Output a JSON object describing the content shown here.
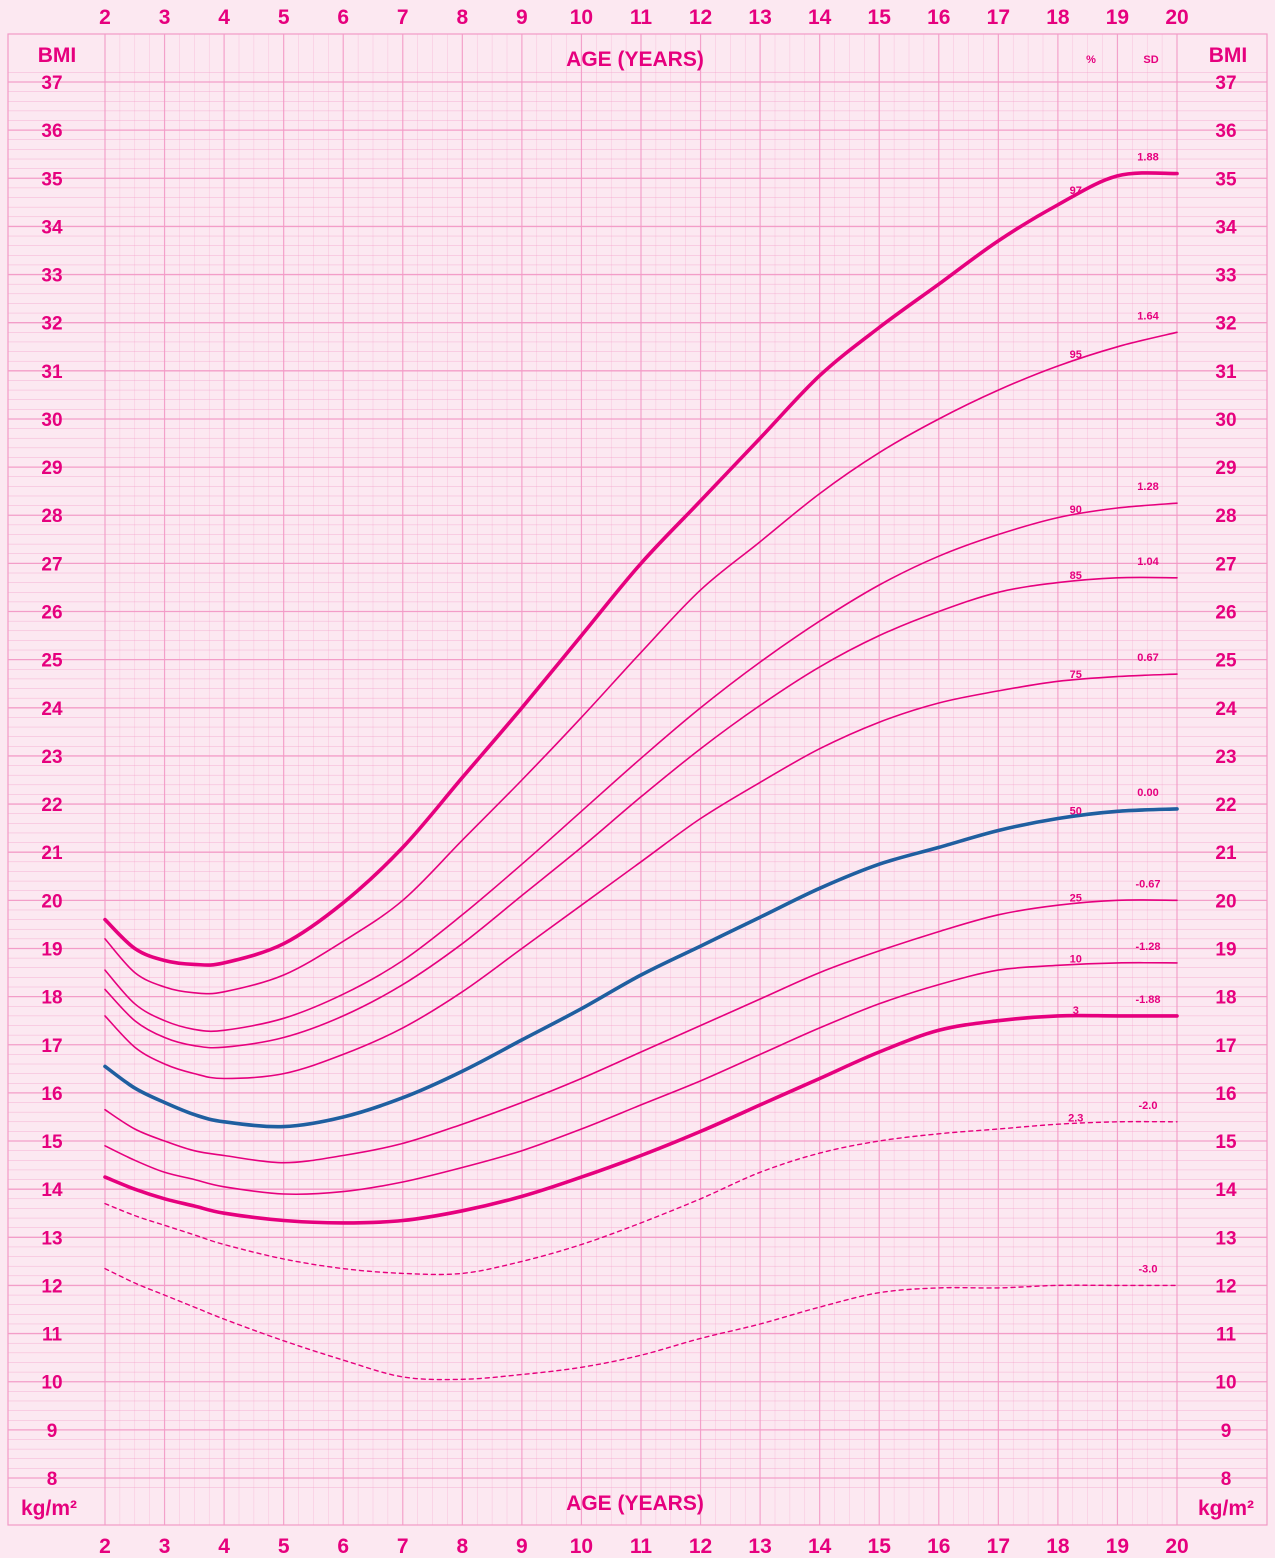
{
  "chart_data": {
    "type": "line",
    "title": "",
    "xlabel": "AGE (YEARS)",
    "ylabel": "BMI",
    "y_unit": "kg/m²",
    "xlim": [
      2,
      20
    ],
    "ylim": [
      8,
      37
    ],
    "x_ticks": [
      2,
      3,
      4,
      5,
      6,
      7,
      8,
      9,
      10,
      11,
      12,
      13,
      14,
      15,
      16,
      17,
      18,
      19,
      20
    ],
    "y_ticks": [
      8,
      9,
      10,
      11,
      12,
      13,
      14,
      15,
      16,
      17,
      18,
      19,
      20,
      21,
      22,
      23,
      24,
      25,
      26,
      27,
      28,
      29,
      30,
      31,
      32,
      33,
      34,
      35,
      36,
      37
    ],
    "grid": true,
    "percentile_header": "%",
    "sd_header": "SD",
    "colors": {
      "accent": "#e6007e",
      "median": "#1f5fa0",
      "grid": "#f39ac6",
      "background": "#fce8f1"
    },
    "series": [
      {
        "name": "97",
        "sd": "1.88",
        "style": "bold",
        "x": [
          2,
          2.5,
          3,
          3.5,
          4,
          5,
          6,
          7,
          8,
          9,
          10,
          11,
          12,
          13,
          14,
          15,
          16,
          17,
          18,
          19,
          20
        ],
        "y": [
          19.6,
          19.0,
          18.75,
          18.67,
          18.7,
          19.1,
          19.95,
          21.1,
          22.55,
          24.0,
          25.5,
          27.0,
          28.3,
          29.6,
          30.9,
          31.9,
          32.8,
          33.7,
          34.45,
          35.05,
          35.1
        ]
      },
      {
        "name": "95",
        "sd": "1.64",
        "style": "thin",
        "x": [
          2,
          2.5,
          3,
          3.5,
          4,
          5,
          6,
          7,
          8,
          9,
          10,
          11,
          12,
          13,
          14,
          15,
          16,
          17,
          18,
          19,
          20
        ],
        "y": [
          19.2,
          18.5,
          18.2,
          18.08,
          18.1,
          18.45,
          19.15,
          20.0,
          21.25,
          22.5,
          23.8,
          25.15,
          26.45,
          27.45,
          28.45,
          29.3,
          30.0,
          30.6,
          31.1,
          31.5,
          31.8
        ]
      },
      {
        "name": "90",
        "sd": "1.28",
        "style": "thin",
        "x": [
          2,
          2.5,
          3,
          3.5,
          4,
          5,
          6,
          7,
          8,
          9,
          10,
          11,
          12,
          13,
          14,
          15,
          16,
          17,
          18,
          19,
          20
        ],
        "y": [
          18.55,
          17.85,
          17.5,
          17.32,
          17.3,
          17.55,
          18.05,
          18.75,
          19.7,
          20.75,
          21.85,
          22.95,
          24.0,
          24.95,
          25.8,
          26.55,
          27.15,
          27.6,
          27.95,
          28.15,
          28.25
        ]
      },
      {
        "name": "85",
        "sd": "1.04",
        "style": "thin",
        "x": [
          2,
          2.5,
          3,
          3.5,
          4,
          5,
          6,
          7,
          8,
          9,
          10,
          11,
          12,
          13,
          14,
          15,
          16,
          17,
          18,
          19,
          20
        ],
        "y": [
          18.15,
          17.5,
          17.15,
          16.98,
          16.95,
          17.15,
          17.6,
          18.25,
          19.1,
          20.1,
          21.1,
          22.15,
          23.15,
          24.05,
          24.85,
          25.5,
          26.0,
          26.4,
          26.6,
          26.7,
          26.7
        ]
      },
      {
        "name": "75",
        "sd": "0.67",
        "style": "thin",
        "x": [
          2,
          2.5,
          3,
          3.5,
          4,
          5,
          6,
          7,
          8,
          9,
          10,
          11,
          12,
          13,
          14,
          15,
          16,
          17,
          18,
          19,
          20
        ],
        "y": [
          17.6,
          16.95,
          16.6,
          16.4,
          16.3,
          16.4,
          16.8,
          17.35,
          18.1,
          19.0,
          19.9,
          20.8,
          21.7,
          22.45,
          23.15,
          23.7,
          24.1,
          24.35,
          24.55,
          24.65,
          24.7
        ]
      },
      {
        "name": "50",
        "sd": "0.00",
        "style": "median",
        "x": [
          2,
          2.5,
          3,
          3.5,
          4,
          5,
          6,
          7,
          8,
          9,
          10,
          11,
          12,
          13,
          14,
          15,
          16,
          17,
          18,
          19,
          20
        ],
        "y": [
          16.55,
          16.1,
          15.8,
          15.55,
          15.4,
          15.3,
          15.5,
          15.9,
          16.45,
          17.1,
          17.75,
          18.45,
          19.05,
          19.65,
          20.25,
          20.75,
          21.1,
          21.45,
          21.7,
          21.85,
          21.9
        ]
      },
      {
        "name": "25",
        "sd": "-0.67",
        "style": "thin",
        "x": [
          2,
          2.5,
          3,
          3.5,
          4,
          5,
          6,
          7,
          8,
          9,
          10,
          11,
          12,
          13,
          14,
          15,
          16,
          17,
          18,
          19,
          20
        ],
        "y": [
          15.65,
          15.25,
          15.0,
          14.8,
          14.7,
          14.55,
          14.7,
          14.95,
          15.35,
          15.8,
          16.3,
          16.85,
          17.4,
          17.95,
          18.5,
          18.95,
          19.35,
          19.7,
          19.9,
          20.0,
          20.0
        ]
      },
      {
        "name": "10",
        "sd": "-1.28",
        "style": "thin",
        "x": [
          2,
          2.5,
          3,
          3.5,
          4,
          5,
          6,
          7,
          8,
          9,
          10,
          11,
          12,
          13,
          14,
          15,
          16,
          17,
          18,
          19,
          20
        ],
        "y": [
          14.9,
          14.6,
          14.35,
          14.2,
          14.05,
          13.9,
          13.95,
          14.15,
          14.45,
          14.8,
          15.25,
          15.75,
          16.25,
          16.8,
          17.35,
          17.85,
          18.25,
          18.55,
          18.65,
          18.7,
          18.7
        ]
      },
      {
        "name": "3",
        "sd": "-1.88",
        "style": "bold",
        "x": [
          2,
          2.5,
          3,
          3.5,
          4,
          5,
          6,
          7,
          8,
          9,
          10,
          11,
          12,
          13,
          14,
          15,
          16,
          17,
          18,
          19,
          20
        ],
        "y": [
          14.25,
          14.0,
          13.8,
          13.65,
          13.5,
          13.35,
          13.3,
          13.35,
          13.55,
          13.85,
          14.25,
          14.7,
          15.2,
          15.75,
          16.3,
          16.85,
          17.3,
          17.5,
          17.6,
          17.6,
          17.6
        ]
      },
      {
        "name": "2.3",
        "sd": "-2.0",
        "style": "dashed",
        "x": [
          2,
          2.5,
          3,
          3.5,
          4,
          5,
          6,
          7,
          8,
          9,
          10,
          11,
          12,
          13,
          14,
          15,
          16,
          17,
          18,
          19,
          20
        ],
        "y": [
          13.7,
          13.45,
          13.25,
          13.05,
          12.85,
          12.55,
          12.35,
          12.25,
          12.25,
          12.5,
          12.85,
          13.3,
          13.8,
          14.35,
          14.75,
          15.0,
          15.15,
          15.25,
          15.35,
          15.4,
          15.4
        ]
      },
      {
        "name": "",
        "sd": "-3.0",
        "style": "dashed",
        "x": [
          2,
          2.5,
          3,
          3.5,
          4,
          5,
          6,
          7,
          8,
          9,
          10,
          11,
          12,
          13,
          14,
          15,
          16,
          17,
          18,
          19,
          20
        ],
        "y": [
          12.35,
          12.05,
          11.8,
          11.55,
          11.3,
          10.85,
          10.45,
          10.1,
          10.05,
          10.15,
          10.3,
          10.55,
          10.9,
          11.2,
          11.55,
          11.85,
          11.95,
          11.95,
          12.0,
          12.0,
          12.0
        ]
      }
    ]
  }
}
